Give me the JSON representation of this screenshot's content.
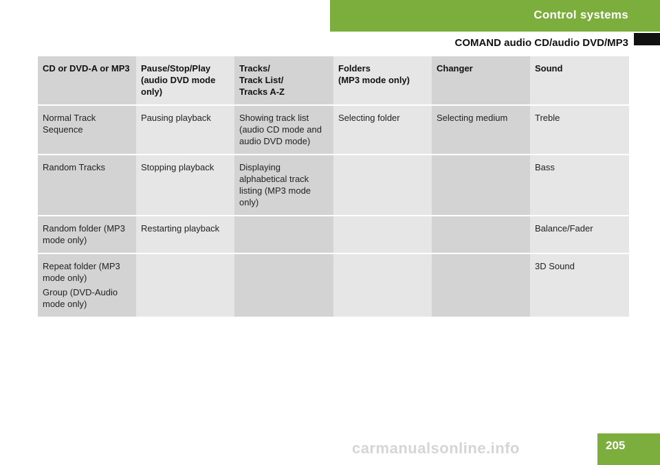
{
  "header": {
    "section_title": "Control systems",
    "subheading": "COMAND audio CD/audio DVD/MP3"
  },
  "table": {
    "headers": [
      [
        "CD or DVD-A or MP3"
      ],
      [
        "Pause/Stop/Play",
        "(audio DVD mode",
        "only)"
      ],
      [
        "Tracks/",
        "Track List/",
        "Tracks A-Z"
      ],
      [
        "Folders",
        "(MP3 mode only)"
      ],
      [
        "Changer"
      ],
      [
        "Sound"
      ]
    ],
    "rows": [
      [
        [
          "Normal Track Sequence"
        ],
        [
          "Pausing playback"
        ],
        [
          "Showing track list (audio CD mode and audio DVD mode)"
        ],
        [
          "Selecting folder"
        ],
        [
          "Selecting medium"
        ],
        [
          "Treble"
        ]
      ],
      [
        [
          "Random Tracks"
        ],
        [
          "Stopping playback"
        ],
        [
          "Displaying alphabetical track listing (MP3 mode only)"
        ],
        [],
        [],
        [
          "Bass"
        ]
      ],
      [
        [
          "Random folder (MP3 mode only)"
        ],
        [
          "Restarting playback"
        ],
        [],
        [],
        [],
        [
          "Balance/Fader"
        ]
      ],
      [
        [
          "Repeat folder (MP3 mode only)",
          "Group (DVD-Audio mode only)"
        ],
        [],
        [],
        [],
        [],
        [
          "3D Sound"
        ]
      ]
    ]
  },
  "footer": {
    "page_number": "205",
    "watermark": "carmanualsonline.info"
  }
}
